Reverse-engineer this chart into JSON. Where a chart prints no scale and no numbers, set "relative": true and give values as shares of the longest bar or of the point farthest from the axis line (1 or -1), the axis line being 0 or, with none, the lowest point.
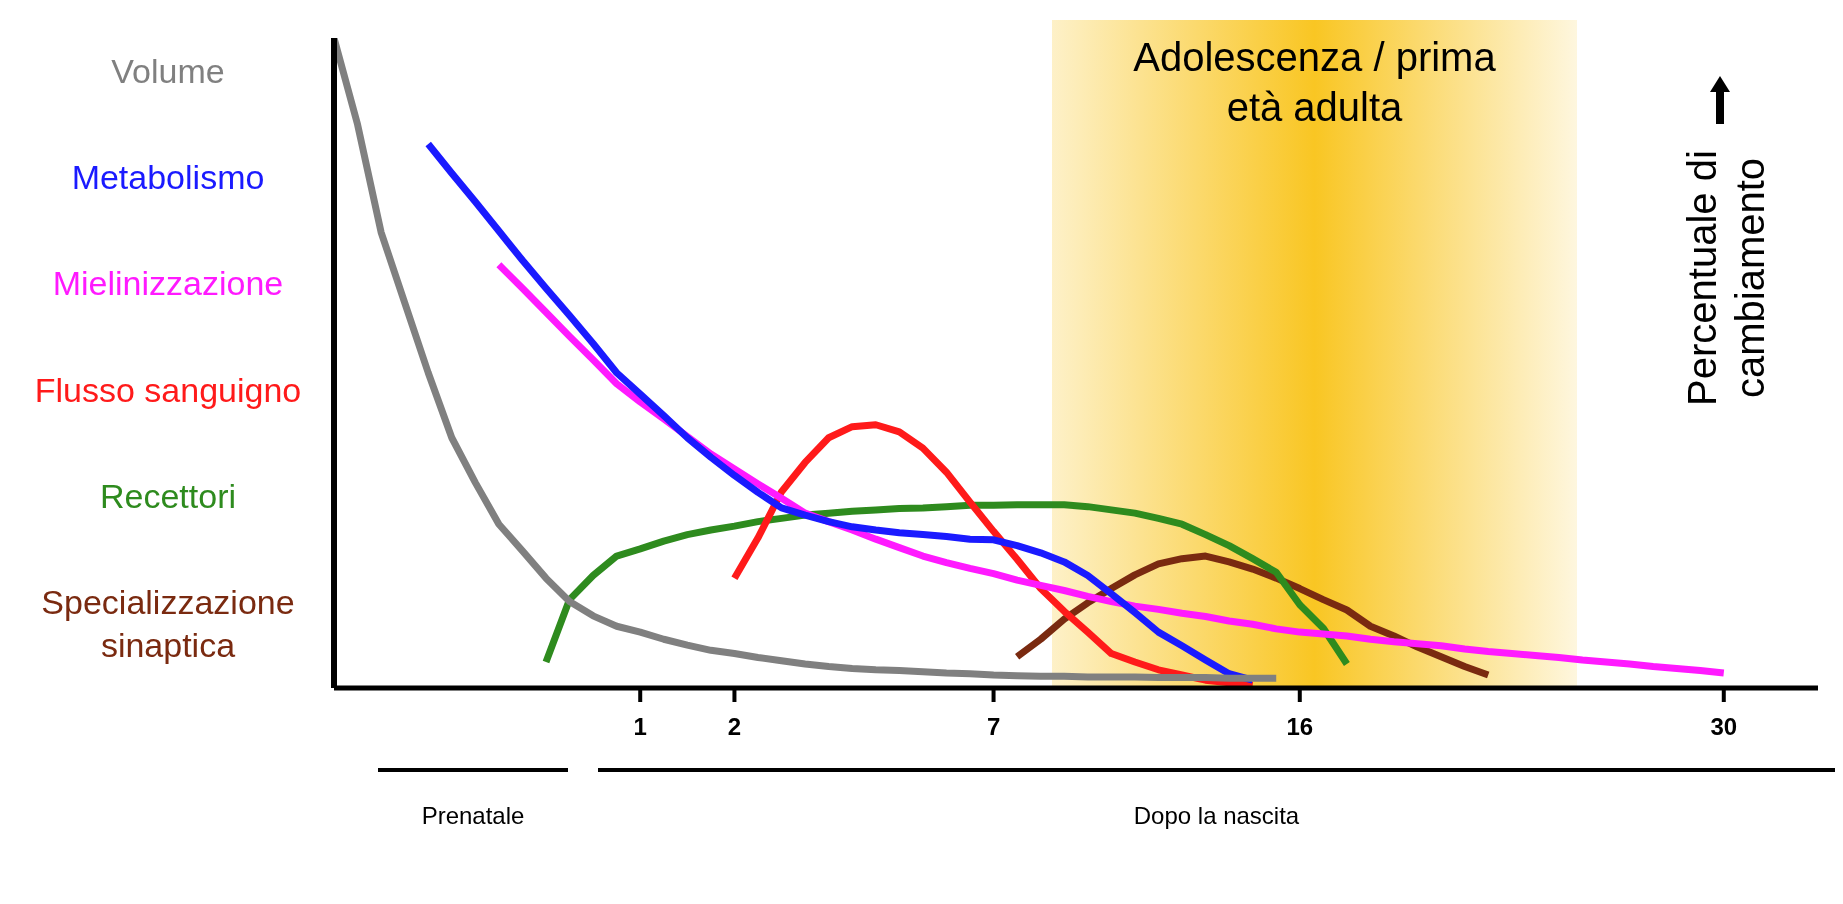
{
  "chart_data": {
    "type": "line",
    "relative": true,
    "marker": "none",
    "line_style": "solid",
    "categories": [
      null,
      null,
      null,
      null,
      null,
      null,
      null,
      null,
      null,
      null,
      null,
      null,
      null,
      "1",
      null,
      null,
      null,
      "2",
      null,
      null,
      null,
      null,
      null,
      null,
      null,
      null,
      null,
      null,
      "7",
      null,
      null,
      null,
      null,
      null,
      null,
      null,
      null,
      null,
      null,
      null,
      null,
      "16",
      null,
      null,
      null,
      null,
      null,
      null,
      null,
      null,
      null,
      null,
      null,
      null,
      null,
      null,
      null,
      null,
      null,
      "30",
      null,
      null,
      null
    ],
    "ylabel": "Percentuale di cambiamento",
    "annotations": [
      "Adolescenza / prima età adulta",
      "Prenatale",
      "Dopo la nascita"
    ],
    "series": [
      {
        "name": "Volume",
        "color": "#808080",
        "values": [
          1,
          0.867,
          0.701,
          0.593,
          0.485,
          0.385,
          0.316,
          0.252,
          0.211,
          0.169,
          0.133,
          0.111,
          0.095,
          0.086,
          0.075,
          0.066,
          0.058,
          0.053,
          0.047,
          0.042,
          0.037,
          0.033,
          0.03,
          0.028,
          0.027,
          0.025,
          0.023,
          0.022,
          0.02,
          0.019,
          0.018,
          0.018,
          0.017,
          0.017,
          0.017,
          0.016,
          0.016,
          0.016,
          0.015,
          0.015,
          0.015,
          null,
          null,
          null,
          null,
          null,
          null,
          null,
          null,
          null,
          null,
          null,
          null,
          null,
          null,
          null,
          null,
          null,
          null,
          null,
          null,
          null,
          null
        ]
      },
      {
        "name": "Metabolismo",
        "color": "#1a1aff",
        "values": [
          null,
          null,
          null,
          null,
          0.837,
          0.792,
          0.748,
          0.703,
          0.658,
          0.615,
          0.573,
          0.53,
          0.485,
          0.452,
          0.419,
          0.385,
          0.355,
          0.327,
          0.301,
          0.277,
          0.266,
          0.256,
          0.248,
          0.243,
          0.239,
          0.236,
          0.233,
          0.229,
          0.228,
          0.219,
          0.208,
          0.194,
          0.173,
          0.145,
          0.116,
          0.086,
          0.065,
          0.043,
          0.022,
          0.012,
          null,
          null,
          null,
          null,
          null,
          null,
          null,
          null,
          null,
          null,
          null,
          null,
          null,
          null,
          null,
          null,
          null,
          null,
          null,
          null,
          null,
          null,
          null
        ]
      },
      {
        "name": "Mielinizzazione",
        "color": "#ff1aff",
        "values": [
          null,
          null,
          null,
          null,
          null,
          null,
          null,
          0.651,
          0.615,
          0.578,
          0.541,
          0.505,
          0.468,
          0.44,
          0.414,
          0.387,
          0.36,
          0.337,
          0.314,
          0.292,
          0.269,
          0.256,
          0.243,
          0.229,
          0.216,
          0.203,
          0.193,
          0.184,
          0.176,
          0.166,
          0.158,
          0.15,
          0.141,
          0.133,
          0.126,
          0.121,
          0.115,
          0.11,
          0.103,
          0.098,
          0.091,
          0.086,
          0.083,
          0.08,
          0.075,
          0.071,
          0.068,
          0.065,
          0.06,
          0.056,
          0.053,
          0.05,
          0.047,
          0.043,
          0.04,
          0.037,
          0.033,
          0.03,
          0.027,
          0.023,
          null,
          null,
          null
        ]
      },
      {
        "name": "Flusso sanguigno",
        "color": "#ff1a1a",
        "values": [
          null,
          null,
          null,
          null,
          null,
          null,
          null,
          null,
          null,
          null,
          null,
          null,
          null,
          null,
          null,
          null,
          null,
          0.169,
          0.231,
          0.302,
          0.347,
          0.385,
          0.402,
          0.405,
          0.394,
          0.369,
          0.332,
          0.286,
          0.241,
          0.198,
          0.153,
          0.118,
          0.086,
          0.053,
          0.04,
          0.028,
          0.02,
          0.012,
          0.008,
          0.004,
          null,
          null,
          null,
          null,
          null,
          null,
          null,
          null,
          null,
          null,
          null,
          null,
          null,
          null,
          null,
          null,
          null,
          null,
          null,
          null,
          null,
          null,
          null
        ]
      },
      {
        "name": "Recettori",
        "color": "#2e8b1e",
        "values": [
          null,
          null,
          null,
          null,
          null,
          null,
          null,
          null,
          null,
          0.04,
          0.136,
          0.173,
          0.203,
          0.214,
          0.226,
          0.236,
          0.243,
          0.249,
          0.256,
          0.261,
          0.266,
          0.269,
          0.272,
          0.274,
          0.276,
          0.277,
          0.279,
          0.281,
          0.281,
          0.282,
          0.282,
          0.282,
          0.279,
          0.274,
          0.269,
          0.261,
          0.252,
          0.236,
          0.219,
          0.199,
          0.178,
          0.128,
          0.092,
          0.037,
          null,
          null,
          null,
          null,
          null,
          null,
          null,
          null,
          null,
          null,
          null,
          null,
          null,
          null,
          null,
          null,
          null,
          null,
          null
        ]
      },
      {
        "name": "Specializzazione sinaptica",
        "color": "#7a2a10",
        "values": [
          null,
          null,
          null,
          null,
          null,
          null,
          null,
          null,
          null,
          null,
          null,
          null,
          null,
          null,
          null,
          null,
          null,
          null,
          null,
          null,
          null,
          null,
          null,
          null,
          null,
          null,
          null,
          null,
          null,
          0.048,
          0.075,
          0.106,
          0.131,
          0.153,
          0.174,
          0.191,
          0.199,
          0.203,
          0.194,
          0.183,
          0.169,
          0.153,
          0.136,
          0.12,
          0.095,
          0.08,
          0.063,
          0.048,
          0.033,
          0.02,
          null,
          null,
          null,
          null,
          null,
          null,
          null,
          null,
          null,
          null,
          null,
          null,
          null
        ]
      }
    ]
  }
}
